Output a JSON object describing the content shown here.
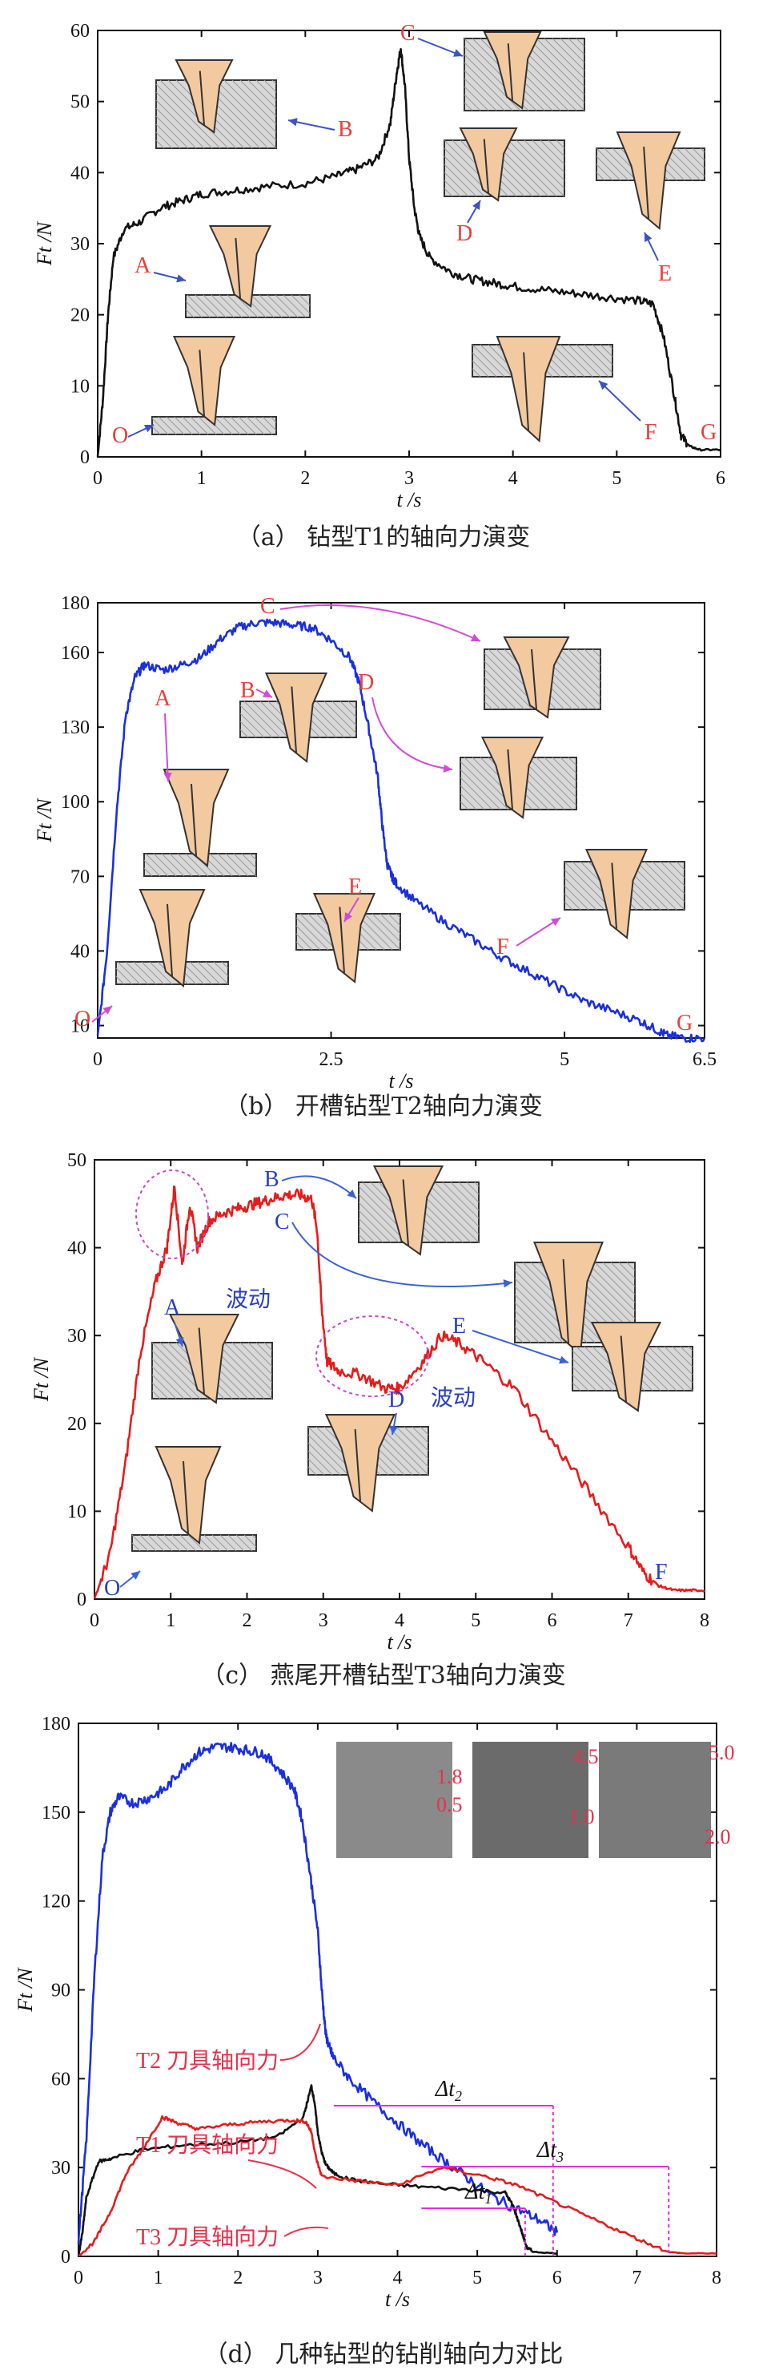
{
  "chart_data": [
    {
      "id": "a",
      "type": "line",
      "caption": "（a） 钻型T1的轴向力演变",
      "xlabel": "t /s",
      "ylabel": "Ft /N",
      "xlim": [
        0,
        6
      ],
      "ylim": [
        0,
        60
      ],
      "xticks": [
        "0",
        "1",
        "2",
        "3",
        "4",
        "5",
        "6"
      ],
      "yticks": [
        "0",
        "10",
        "20",
        "30",
        "40",
        "50",
        "60"
      ],
      "colors": {
        "line": "#111111",
        "label": "#e8403a",
        "arrow": "#3a52c8"
      },
      "series": [
        {
          "color": "#111111",
          "x": [
            0,
            0.05,
            0.1,
            0.15,
            0.25,
            0.4,
            0.6,
            0.8,
            1.0,
            1.3,
            1.6,
            2.0,
            2.3,
            2.5,
            2.7,
            2.82,
            2.88,
            2.92,
            2.96,
            3.0,
            3.05,
            3.1,
            3.2,
            3.4,
            3.6,
            3.8,
            4.0,
            4.3,
            4.6,
            4.9,
            5.2,
            5.35,
            5.45,
            5.55,
            5.62,
            5.7,
            5.8,
            6.0
          ],
          "y": [
            0,
            8,
            20,
            28,
            32,
            33,
            35,
            36,
            37,
            37.5,
            38,
            38.5,
            39.5,
            40.5,
            42,
            47,
            54,
            57.5,
            52,
            42,
            35,
            31,
            28,
            26,
            25,
            24.5,
            24,
            23.5,
            23,
            22.5,
            22,
            21.5,
            17,
            9,
            3,
            1.5,
            1,
            1
          ]
        }
      ],
      "labels": [
        "O",
        "A",
        "B",
        "C",
        "D",
        "E",
        "F",
        "G"
      ]
    },
    {
      "id": "b",
      "type": "line",
      "caption": "（b） 开槽钻型T2轴向力演变",
      "xlabel": "t /s",
      "ylabel": "Ft /N",
      "xlim": [
        0,
        6.5
      ],
      "ylim": [
        5,
        180
      ],
      "xticks": [
        "0",
        "2.5",
        "5",
        "6.5"
      ],
      "yticks": [
        "10",
        "40",
        "70",
        "100",
        "130",
        "160",
        "180"
      ],
      "colors": {
        "line": "#1a2fe0",
        "label": "#e8403a",
        "arrow": "#d24ad6",
        "labelC": "#e8403a"
      },
      "series": [
        {
          "color": "#1a2fe0",
          "x": [
            0,
            0.1,
            0.2,
            0.3,
            0.4,
            0.5,
            0.7,
            0.9,
            1.1,
            1.3,
            1.5,
            1.7,
            1.9,
            2.1,
            2.3,
            2.5,
            2.7,
            2.8,
            2.9,
            3.0,
            3.05,
            3.1,
            3.15,
            3.2,
            3.4,
            3.7,
            4.0,
            4.3,
            4.6,
            4.9,
            5.2,
            5.5,
            5.8,
            6.0,
            6.1,
            6.3,
            6.5
          ],
          "y": [
            5,
            40,
            95,
            135,
            150,
            155,
            153,
            155,
            158,
            165,
            170,
            172,
            172,
            171,
            170,
            165,
            158,
            148,
            130,
            110,
            90,
            75,
            70,
            67,
            60,
            52,
            45,
            38,
            32,
            26,
            20,
            16,
            12,
            8,
            6,
            5,
            5
          ]
        }
      ],
      "labels": [
        "O",
        "A",
        "B",
        "C",
        "D",
        "E",
        "F",
        "G"
      ]
    },
    {
      "id": "c",
      "type": "line",
      "caption": "（c） 燕尾开槽钻型T3轴向力演变",
      "xlabel": "t /s",
      "ylabel": "Ft /N",
      "xlim": [
        0,
        8
      ],
      "ylim": [
        0,
        50
      ],
      "xticks": [
        "0",
        "1",
        "2",
        "3",
        "4",
        "5",
        "6",
        "7",
        "8"
      ],
      "yticks": [
        "0",
        "10",
        "20",
        "30",
        "40",
        "50"
      ],
      "colors": {
        "line": "#e81b1b",
        "label": "#2a3fc0",
        "arrow": "#3a62d8",
        "ellipse": "#cc44cc"
      },
      "series": [
        {
          "color": "#e81b1b",
          "x": [
            0,
            0.2,
            0.4,
            0.6,
            0.8,
            0.95,
            1.05,
            1.15,
            1.25,
            1.35,
            1.5,
            1.7,
            1.9,
            2.1,
            2.3,
            2.5,
            2.7,
            2.85,
            2.92,
            2.98,
            3.05,
            3.2,
            3.5,
            3.8,
            4.0,
            4.3,
            4.55,
            4.8,
            5.1,
            5.5,
            6.0,
            6.5,
            7.0,
            7.2,
            7.4,
            7.6,
            7.8,
            8.0
          ],
          "y": [
            0,
            5,
            15,
            28,
            36,
            40,
            47,
            38,
            45,
            40,
            43,
            44,
            44.5,
            45,
            45.5,
            46,
            46,
            45.5,
            42,
            33,
            27,
            26,
            25.5,
            24,
            24,
            27,
            30,
            29,
            27,
            24,
            18,
            12,
            6,
            3,
            1.5,
            1,
            1,
            1
          ]
        }
      ],
      "labels": [
        "O",
        "A",
        "B",
        "C",
        "D",
        "E",
        "F"
      ],
      "annotations": [
        "波动",
        "波动"
      ]
    },
    {
      "id": "d",
      "type": "line",
      "caption": "（d） 几种钻型的钻削轴向力对比",
      "xlabel": "t /s",
      "ylabel": "Ft /N",
      "xlim": [
        0,
        8
      ],
      "ylim": [
        0,
        180
      ],
      "xticks": [
        "0",
        "1",
        "2",
        "3",
        "4",
        "5",
        "6",
        "7",
        "8"
      ],
      "yticks": [
        "0",
        "30",
        "60",
        "90",
        "120",
        "150",
        "180"
      ],
      "colors": {
        "T1": "#111111",
        "T2": "#1a2fe0",
        "T3": "#e81b1b",
        "annot": "#e8304a",
        "dim": "#e82ae0"
      },
      "series": [
        {
          "name": "T2",
          "color": "#1a2fe0",
          "x": [
            0,
            0.1,
            0.2,
            0.3,
            0.4,
            0.5,
            0.7,
            0.9,
            1.1,
            1.3,
            1.5,
            1.7,
            1.9,
            2.1,
            2.3,
            2.5,
            2.7,
            2.8,
            2.9,
            3.0,
            3.05,
            3.1,
            3.15,
            3.2,
            3.4,
            3.7,
            4.0,
            4.3,
            4.6,
            4.9,
            5.2,
            5.5,
            5.8,
            6.0
          ],
          "y": [
            5,
            40,
            95,
            135,
            150,
            155,
            153,
            155,
            158,
            165,
            170,
            172,
            172,
            171,
            170,
            165,
            158,
            148,
            130,
            110,
            90,
            75,
            70,
            67,
            60,
            52,
            45,
            38,
            32,
            26,
            20,
            16,
            12,
            8
          ]
        },
        {
          "name": "T1",
          "color": "#111111",
          "x": [
            0,
            0.05,
            0.1,
            0.25,
            0.4,
            0.8,
            1.3,
            2.0,
            2.5,
            2.82,
            2.92,
            2.96,
            3.0,
            3.05,
            3.1,
            3.2,
            3.4,
            3.8,
            4.3,
            4.9,
            5.35,
            5.45,
            5.55,
            5.62,
            5.7,
            6.0
          ],
          "y": [
            0,
            8,
            20,
            32,
            33,
            36,
            37.5,
            38.5,
            40.5,
            47,
            57.5,
            52,
            42,
            35,
            31,
            28,
            26,
            24.5,
            23.5,
            22.5,
            21.5,
            17,
            9,
            3,
            1.5,
            1
          ]
        },
        {
          "name": "T3",
          "color": "#e81b1b",
          "x": [
            0,
            0.2,
            0.4,
            0.6,
            0.8,
            1.05,
            1.25,
            1.5,
            1.9,
            2.3,
            2.7,
            2.85,
            2.92,
            2.98,
            3.05,
            3.5,
            4.0,
            4.55,
            5.1,
            5.5,
            6.0,
            6.5,
            7.0,
            7.4,
            7.6,
            8.0
          ],
          "y": [
            0,
            5,
            15,
            28,
            36,
            47,
            45,
            43,
            44.5,
            45.5,
            46,
            45.5,
            42,
            33,
            27,
            25.5,
            24,
            30,
            27,
            24,
            18,
            12,
            6,
            1.5,
            1,
            1
          ]
        }
      ],
      "annotations": {
        "t2_label": "T2 刀具轴向力",
        "t1_label": "T1 刀具轴向力",
        "t3_label": "T3 刀具轴向力",
        "dt2": "Δt",
        "dt2_sub": "2",
        "dt1": "Δt",
        "dt1_sub": "1",
        "dt3": "Δt",
        "dt3_sub": "3",
        "photo_dims": [
          "1.8",
          "0.5",
          "4.5",
          "1.0",
          "5.0",
          "2.0"
        ]
      }
    }
  ]
}
